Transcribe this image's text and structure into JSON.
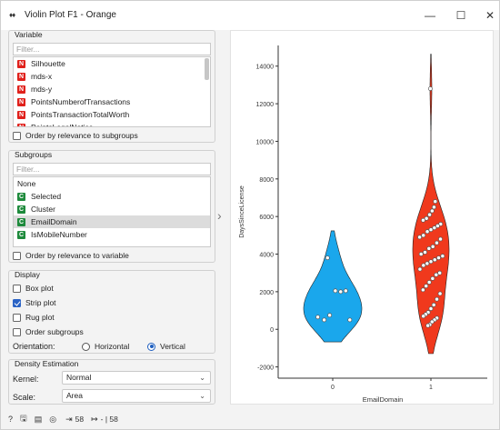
{
  "window": {
    "title": "Violin Plot F1 - Orange",
    "minimize": "—",
    "maximize": "☐",
    "close": "✕"
  },
  "variable": {
    "title": "Variable",
    "filter_placeholder": "Filter...",
    "items": [
      {
        "badge": "N",
        "label": "Silhouette"
      },
      {
        "badge": "N",
        "label": "mds-x"
      },
      {
        "badge": "N",
        "label": "mds-y"
      },
      {
        "badge": "N",
        "label": "PointsNumberofTransactions"
      },
      {
        "badge": "N",
        "label": "PointsTransactionTotalWorth"
      },
      {
        "badge": "N",
        "label": "PointsLegalNotice"
      }
    ],
    "order_label": "Order by relevance to subgroups"
  },
  "subgroups": {
    "title": "Subgroups",
    "filter_placeholder": "Filter...",
    "items": [
      {
        "badge": "",
        "label": "None"
      },
      {
        "badge": "C",
        "label": "Selected"
      },
      {
        "badge": "C",
        "label": "Cluster"
      },
      {
        "badge": "C",
        "label": "EmailDomain"
      },
      {
        "badge": "C",
        "label": "IsMobileNumber"
      }
    ],
    "selected_index": 3,
    "order_label": "Order by relevance to variable"
  },
  "display": {
    "title": "Display",
    "box_plot": "Box plot",
    "strip_plot": "Strip plot",
    "rug_plot": "Rug plot",
    "order_subgroups": "Order subgroups",
    "orientation_label": "Orientation:",
    "horizontal": "Horizontal",
    "vertical": "Vertical",
    "checked": {
      "box_plot": false,
      "strip_plot": true,
      "rug_plot": false,
      "order_subgroups": false
    },
    "orientation": "Vertical"
  },
  "density": {
    "title": "Density Estimation",
    "kernel_label": "Kernel:",
    "kernel_value": "Normal",
    "scale_label": "Scale:",
    "scale_value": "Area"
  },
  "status": {
    "in_count": "58",
    "out_count": "- | 58"
  },
  "chart_data": {
    "type": "violin",
    "ylabel": "DaysSinceLicense",
    "xlabel": "EmailDomain",
    "categories": [
      "0",
      "1"
    ],
    "yticks": [
      -2000,
      0,
      2000,
      4000,
      6000,
      8000,
      10000,
      12000,
      14000
    ],
    "ylim": [
      -2600,
      15100
    ],
    "series": [
      {
        "category": "0",
        "color": "#1aa7ec",
        "points": [
          3800,
          2050,
          2000,
          2050,
          750,
          500,
          650,
          500
        ]
      },
      {
        "category": "1",
        "color": "#f0391d",
        "points": [
          12800,
          6800,
          6500,
          6300,
          6100,
          5900,
          5800,
          5600,
          5500,
          5400,
          5300,
          5200,
          5000,
          4900,
          4800,
          4600,
          4400,
          4300,
          4100,
          4000,
          3900,
          3800,
          3700,
          3600,
          3500,
          3400,
          3200,
          3000,
          2900,
          2700,
          2500,
          2300,
          2100,
          1900,
          1600,
          1300,
          1100,
          900,
          800,
          700,
          600,
          500,
          400,
          250,
          200
        ]
      }
    ]
  }
}
